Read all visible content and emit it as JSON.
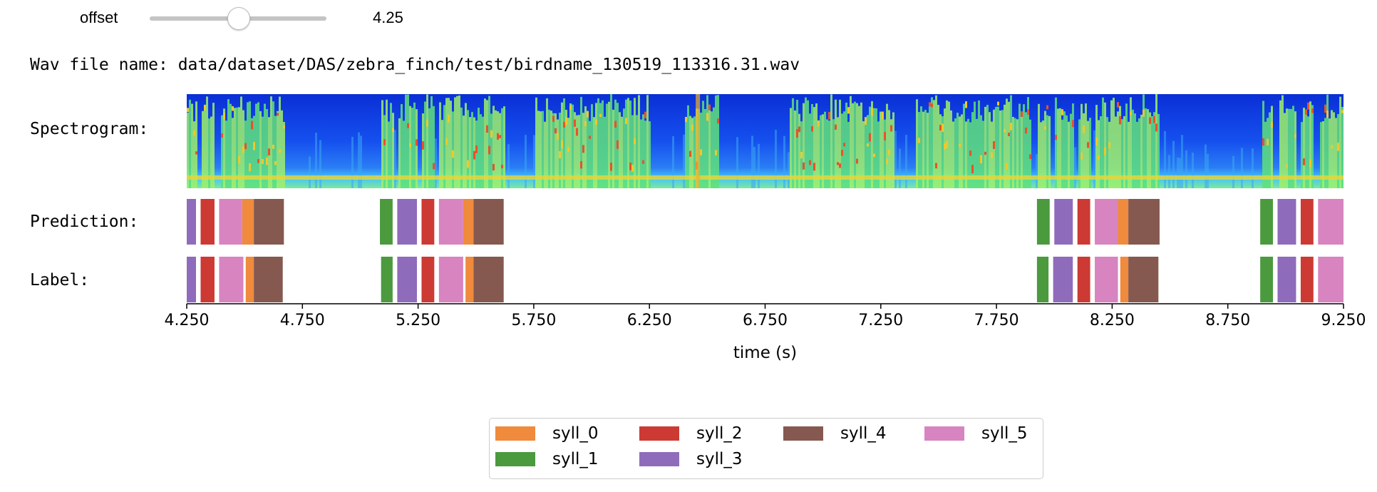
{
  "slider": {
    "label": "offset",
    "value": "4.25",
    "min": 0,
    "max": 8.5,
    "position": 4.25
  },
  "wav_file": "Wav file name: data/dataset/DAS/zebra_finch/test/birdname_130519_113316.31.wav",
  "row_labels": {
    "spectrogram": "Spectrogram:",
    "prediction": "Prediction:",
    "label": "Label:"
  },
  "colors": {
    "syll_0": "#f08a3c",
    "syll_1": "#4b9a3e",
    "syll_2": "#cc3a33",
    "syll_3": "#8f6bbb",
    "syll_4": "#85594f",
    "syll_5": "#d784c1"
  },
  "legend": {
    "items": [
      {
        "name": "syll_0",
        "color": "#f08a3c"
      },
      {
        "name": "syll_2",
        "color": "#cc3a33"
      },
      {
        "name": "syll_4",
        "color": "#85594f"
      },
      {
        "name": "syll_5",
        "color": "#d784c1"
      },
      {
        "name": "syll_1",
        "color": "#4b9a3e"
      },
      {
        "name": "syll_3",
        "color": "#8f6bbb"
      }
    ]
  },
  "chart_data": {
    "type": "syllable annotation timeline",
    "xlabel": "time (s)",
    "xlim": [
      4.25,
      9.25
    ],
    "xticks": [
      "4.250",
      "4.750",
      "5.250",
      "5.750",
      "6.250",
      "6.750",
      "7.250",
      "7.750",
      "8.250",
      "8.750",
      "9.250"
    ],
    "xtick_values": [
      4.25,
      4.75,
      5.25,
      5.75,
      6.25,
      6.75,
      7.25,
      7.75,
      8.25,
      8.75,
      9.25
    ],
    "spectrogram_colormap": "jet",
    "tracks": [
      {
        "name": "Prediction",
        "segments": [
          {
            "syll": "syll_3",
            "start": 4.25,
            "end": 4.29
          },
          {
            "syll": "syll_2",
            "start": 4.31,
            "end": 4.37
          },
          {
            "syll": "syll_5",
            "start": 4.39,
            "end": 4.49
          },
          {
            "syll": "syll_0",
            "start": 4.49,
            "end": 4.54
          },
          {
            "syll": "syll_4",
            "start": 4.54,
            "end": 4.67
          },
          {
            "syll": "syll_1",
            "start": 5.085,
            "end": 5.14
          },
          {
            "syll": "syll_3",
            "start": 5.16,
            "end": 5.245
          },
          {
            "syll": "syll_2",
            "start": 5.265,
            "end": 5.32
          },
          {
            "syll": "syll_5",
            "start": 5.34,
            "end": 5.445
          },
          {
            "syll": "syll_0",
            "start": 5.445,
            "end": 5.49
          },
          {
            "syll": "syll_4",
            "start": 5.49,
            "end": 5.62
          },
          {
            "syll": "syll_1",
            "start": 7.925,
            "end": 7.98
          },
          {
            "syll": "syll_3",
            "start": 8.0,
            "end": 8.08
          },
          {
            "syll": "syll_2",
            "start": 8.1,
            "end": 8.155
          },
          {
            "syll": "syll_5",
            "start": 8.175,
            "end": 8.275
          },
          {
            "syll": "syll_0",
            "start": 8.275,
            "end": 8.32
          },
          {
            "syll": "syll_4",
            "start": 8.32,
            "end": 8.455
          },
          {
            "syll": "syll_1",
            "start": 8.89,
            "end": 8.945
          },
          {
            "syll": "syll_3",
            "start": 8.965,
            "end": 9.045
          },
          {
            "syll": "syll_2",
            "start": 9.065,
            "end": 9.12
          },
          {
            "syll": "syll_5",
            "start": 9.14,
            "end": 9.25
          }
        ]
      },
      {
        "name": "Label",
        "segments": [
          {
            "syll": "syll_3",
            "start": 4.25,
            "end": 4.29
          },
          {
            "syll": "syll_2",
            "start": 4.31,
            "end": 4.37
          },
          {
            "syll": "syll_5",
            "start": 4.39,
            "end": 4.495
          },
          {
            "syll": "syll_0",
            "start": 4.505,
            "end": 4.54
          },
          {
            "syll": "syll_4",
            "start": 4.54,
            "end": 4.665
          },
          {
            "syll": "syll_1",
            "start": 5.09,
            "end": 5.14
          },
          {
            "syll": "syll_3",
            "start": 5.16,
            "end": 5.245
          },
          {
            "syll": "syll_2",
            "start": 5.265,
            "end": 5.32
          },
          {
            "syll": "syll_5",
            "start": 5.34,
            "end": 5.445
          },
          {
            "syll": "syll_0",
            "start": 5.455,
            "end": 5.49
          },
          {
            "syll": "syll_4",
            "start": 5.49,
            "end": 5.62
          },
          {
            "syll": "syll_1",
            "start": 7.925,
            "end": 7.975
          },
          {
            "syll": "syll_3",
            "start": 7.995,
            "end": 8.08
          },
          {
            "syll": "syll_2",
            "start": 8.1,
            "end": 8.155
          },
          {
            "syll": "syll_5",
            "start": 8.175,
            "end": 8.275
          },
          {
            "syll": "syll_0",
            "start": 8.285,
            "end": 8.32
          },
          {
            "syll": "syll_4",
            "start": 8.32,
            "end": 8.45
          },
          {
            "syll": "syll_1",
            "start": 8.89,
            "end": 8.945
          },
          {
            "syll": "syll_3",
            "start": 8.965,
            "end": 9.045
          },
          {
            "syll": "syll_2",
            "start": 9.065,
            "end": 9.12
          },
          {
            "syll": "syll_5",
            "start": 9.14,
            "end": 9.25
          }
        ]
      }
    ]
  }
}
